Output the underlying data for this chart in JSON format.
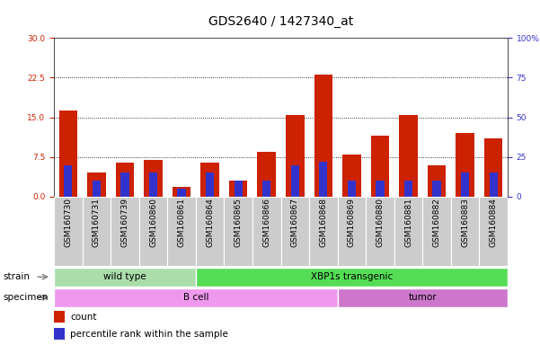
{
  "title": "GDS2640 / 1427340_at",
  "samples": [
    "GSM160730",
    "GSM160731",
    "GSM160739",
    "GSM160860",
    "GSM160861",
    "GSM160864",
    "GSM160865",
    "GSM160866",
    "GSM160867",
    "GSM160868",
    "GSM160869",
    "GSM160880",
    "GSM160881",
    "GSM160882",
    "GSM160883",
    "GSM160884"
  ],
  "counts": [
    16.2,
    4.5,
    6.5,
    7.0,
    1.8,
    6.5,
    3.0,
    8.5,
    15.5,
    23.0,
    8.0,
    11.5,
    15.5,
    6.0,
    12.0,
    11.0
  ],
  "percentiles": [
    20,
    10,
    15,
    15,
    5,
    15,
    10,
    10,
    20,
    22,
    10,
    10,
    10,
    10,
    15,
    15
  ],
  "ylim_left": [
    0,
    30
  ],
  "ylim_right": [
    0,
    100
  ],
  "yticks_left": [
    0,
    7.5,
    15.0,
    22.5,
    30
  ],
  "yticks_right": [
    0,
    25,
    50,
    75,
    100
  ],
  "bar_color": "#cc2200",
  "percentile_color": "#3333cc",
  "bg_color": "#cccccc",
  "strain_groups": [
    {
      "label": "wild type",
      "start": 0,
      "end": 5,
      "color": "#aaddaa"
    },
    {
      "label": "XBP1s transgenic",
      "start": 5,
      "end": 16,
      "color": "#55dd55"
    }
  ],
  "specimen_groups": [
    {
      "label": "B cell",
      "start": 0,
      "end": 10,
      "color": "#ee99ee"
    },
    {
      "label": "tumor",
      "start": 10,
      "end": 16,
      "color": "#cc77cc"
    }
  ],
  "strain_label": "strain",
  "specimen_label": "specimen",
  "legend_count_label": "count",
  "legend_pct_label": "percentile rank within the sample",
  "grid_color": "black",
  "title_fontsize": 10,
  "tick_fontsize": 6.5,
  "label_fontsize": 7.5,
  "ylabel_left_color": "#cc2200",
  "ylabel_right_color": "#3333cc"
}
